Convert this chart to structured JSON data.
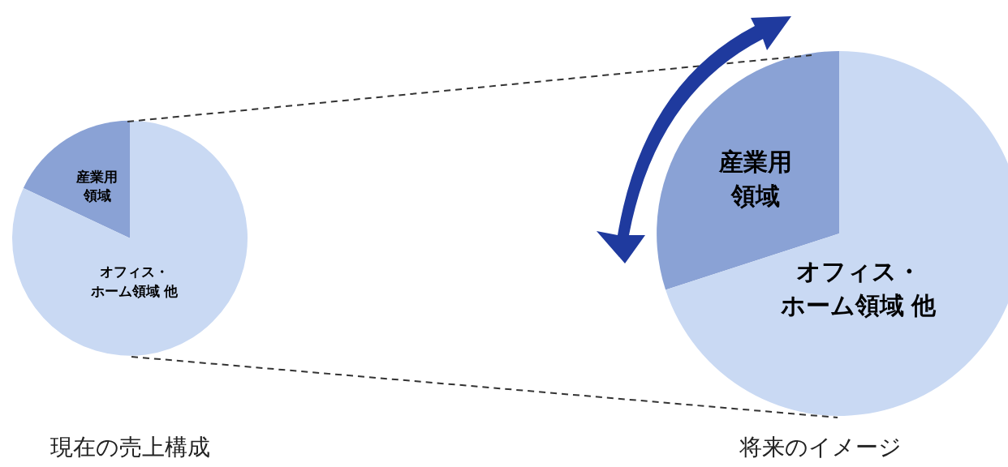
{
  "chart_data": [
    {
      "type": "pie",
      "title": "現在の売上構成",
      "categories": [
        "産業用領域",
        "オフィス・ホーム領域 他"
      ],
      "values": [
        18,
        82
      ],
      "colors": [
        "#8aa2d5",
        "#c9d9f3"
      ],
      "legend": false
    },
    {
      "type": "pie",
      "title": "将来のイメージ",
      "categories": [
        "産業用領域",
        "オフィス・ホーム領域 他"
      ],
      "values": [
        30,
        70
      ],
      "colors": [
        "#8aa2d5",
        "#c9d9f3"
      ],
      "legend": false
    }
  ]
}
